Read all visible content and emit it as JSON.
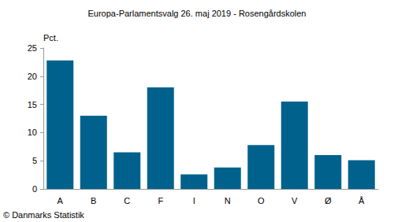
{
  "chart_data": {
    "type": "bar",
    "title": "Europa-Parlamentsvalg 26. maj 2019 - Rosengårdskolen",
    "ylabel": "Pct.",
    "annotations": [
      "© Danmarks Statistik"
    ],
    "categories": [
      "A",
      "B",
      "C",
      "F",
      "I",
      "N",
      "O",
      "V",
      "Ø",
      "Å"
    ],
    "values": [
      22.8,
      13.0,
      6.5,
      18.0,
      2.6,
      3.8,
      7.8,
      15.5,
      6.0,
      5.1
    ],
    "color": "#00628c",
    "ylim": [
      0,
      25
    ],
    "yticks": [
      0,
      5,
      10,
      15,
      20,
      25
    ],
    "grid": false
  }
}
